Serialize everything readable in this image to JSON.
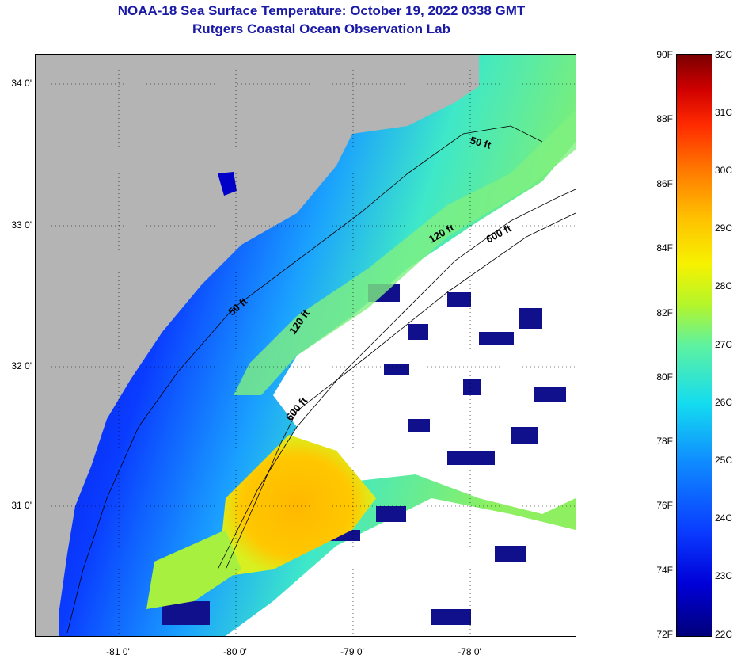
{
  "title": {
    "line1": "NOAA-18 Sea Surface Temperature:  October 19, 2022 0338 GMT",
    "line2": "Rutgers Coastal Ocean Observation Lab"
  },
  "map": {
    "lat_ticks": [
      "34 0'",
      "33 0'",
      "32 0'",
      "31 0'"
    ],
    "lon_ticks": [
      "-81 0'",
      "-80 0'",
      "-79 0'",
      "-78 0'"
    ],
    "contour_labels": {
      "c50a": "50 ft",
      "c50b": "50 ft",
      "c120a": "120 ft",
      "c120b": "120 ft",
      "c600a": "600 ft",
      "c600b": "600 ft"
    },
    "colors": {
      "land": "#b4b4b4",
      "cloud": "#ffffff",
      "cold": "#0000d8",
      "mid": "#14dcf0",
      "warm": "#ffc000"
    }
  },
  "colorbar": {
    "fahrenheit": [
      "90F",
      "88F",
      "86F",
      "84F",
      "82F",
      "80F",
      "78F",
      "76F",
      "74F",
      "72F"
    ],
    "celsius": [
      "32C",
      "31C",
      "30C",
      "29C",
      "28C",
      "27C",
      "26C",
      "25C",
      "24C",
      "23C",
      "22C"
    ]
  }
}
